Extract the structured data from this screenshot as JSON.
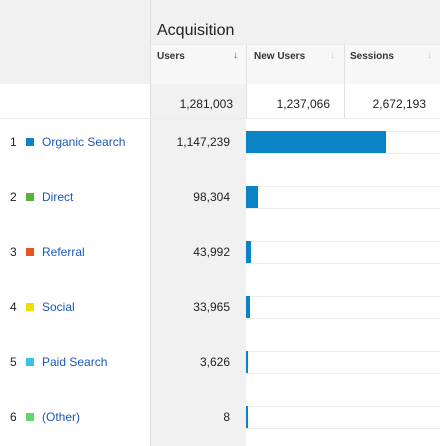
{
  "section_title": "Acquisition",
  "columns": [
    {
      "label": "Users",
      "sort_icon": "↓",
      "active": true
    },
    {
      "label": "New Users",
      "sort_icon": "↓",
      "active": false
    },
    {
      "label": "Sessions",
      "sort_icon": "↓",
      "active": false
    }
  ],
  "totals": {
    "users": "1,281,003",
    "new_users": "1,237,066",
    "sessions": "2,672,193"
  },
  "rows": [
    {
      "num": "1",
      "label": "Organic Search",
      "value": "1,147,239",
      "color": "#0b84c6",
      "share": 0.8956
    },
    {
      "num": "2",
      "label": "Direct",
      "value": "98,304",
      "color": "#57b23b",
      "share": 0.0767
    },
    {
      "num": "3",
      "label": "Referral",
      "value": "43,992",
      "color": "#e8541d",
      "share": 0.0343
    },
    {
      "num": "4",
      "label": "Social",
      "value": "33,965",
      "color": "#ede100",
      "share": 0.0265
    },
    {
      "num": "5",
      "label": "Paid Search",
      "value": "3,626",
      "color": "#3cc1e8",
      "share": 0.0028
    },
    {
      "num": "6",
      "label": "(Other)",
      "value": "8",
      "color": "#62d66a",
      "share": 0.0
    }
  ]
}
